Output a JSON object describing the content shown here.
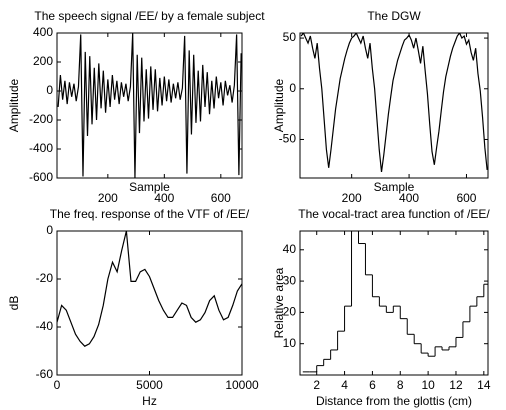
{
  "chart_data": [
    {
      "type": "line",
      "title": "The speech signal /EE/ by a female subject",
      "x_label": "Sample",
      "y_label": "Amplitude",
      "color": "#000000",
      "x": [
        24,
        32,
        40,
        48,
        56,
        64,
        72,
        80,
        88,
        96,
        104,
        112,
        120,
        128,
        136,
        144,
        152,
        160,
        168,
        176,
        184,
        192,
        200,
        208,
        216,
        224,
        232,
        240,
        248,
        256,
        264,
        272,
        280,
        288,
        296,
        304,
        312,
        320,
        328,
        336,
        344,
        352,
        360,
        368,
        376,
        384,
        392,
        400,
        408,
        416,
        424,
        432,
        440,
        448,
        456,
        464,
        472,
        480,
        488,
        496,
        504,
        512,
        520,
        528,
        536,
        544,
        552,
        560,
        568,
        576,
        584,
        592,
        600,
        608,
        616,
        624,
        632,
        640,
        648,
        656,
        664,
        672
      ],
      "values": [
        -110,
        110,
        -60,
        70,
        -90,
        60,
        -40,
        50,
        -70,
        30,
        390,
        -590,
        270,
        -310,
        240,
        -230,
        160,
        -200,
        190,
        -120,
        140,
        -150,
        80,
        -110,
        110,
        -60,
        70,
        -90,
        60,
        -40,
        50,
        -70,
        30,
        400,
        -600,
        250,
        -290,
        230,
        -210,
        150,
        -190,
        170,
        -130,
        150,
        -140,
        90,
        -100,
        100,
        -70,
        80,
        -80,
        50,
        -50,
        60,
        -60,
        20,
        380,
        -570,
        280,
        -300,
        250,
        -220,
        140,
        -210,
        180,
        -110,
        130,
        -160,
        70,
        -120,
        100,
        -50,
        60,
        -100,
        70,
        -30,
        40,
        -80,
        40,
        390,
        -580,
        260
      ],
      "xlim": [
        20,
        675
      ],
      "ylim": [
        -600,
        400
      ],
      "xticks": [
        200,
        400,
        600
      ],
      "yticks": [
        -600,
        -400,
        -200,
        0,
        200,
        400
      ]
    },
    {
      "type": "line",
      "title": "The DGW",
      "x_label": "Sample",
      "y_label": "Amplitude",
      "color": "#000000",
      "x": [
        24,
        32,
        40,
        48,
        56,
        64,
        72,
        80,
        88,
        96,
        104,
        112,
        120,
        128,
        136,
        144,
        152,
        160,
        168,
        176,
        184,
        192,
        200,
        208,
        216,
        224,
        232,
        240,
        248,
        256,
        264,
        272,
        280,
        288,
        296,
        304,
        312,
        320,
        328,
        336,
        344,
        352,
        360,
        368,
        376,
        384,
        392,
        400,
        408,
        416,
        424,
        432,
        440,
        448,
        456,
        464,
        472,
        480,
        488,
        496,
        504,
        512,
        520,
        528,
        536,
        544,
        552,
        560,
        568,
        576,
        584,
        592,
        600,
        608,
        616,
        624,
        632,
        640,
        648,
        656,
        664,
        672
      ],
      "values": [
        52,
        55,
        50,
        45,
        52,
        40,
        30,
        45,
        20,
        0,
        -30,
        -60,
        -78,
        -60,
        -40,
        -20,
        -5,
        10,
        20,
        30,
        38,
        45,
        50,
        52,
        55,
        50,
        45,
        52,
        40,
        30,
        45,
        20,
        0,
        -30,
        -60,
        -82,
        -65,
        -45,
        -25,
        -8,
        8,
        18,
        28,
        35,
        42,
        48,
        50,
        53,
        48,
        40,
        50,
        38,
        25,
        42,
        18,
        -5,
        -35,
        -62,
        -75,
        -58,
        -42,
        -22,
        -3,
        12,
        22,
        32,
        40,
        46,
        52,
        55,
        50,
        52,
        44,
        48,
        36,
        28,
        40,
        15,
        -2,
        -28,
        -58,
        -80
      ],
      "xlim": [
        20,
        675
      ],
      "ylim": [
        -88,
        55
      ],
      "xticks": [
        200,
        400,
        600
      ],
      "yticks": [
        -50,
        0,
        50
      ]
    },
    {
      "type": "line",
      "title": "The freq. response of the VTF of /EE/",
      "x_label": "Hz",
      "y_label": "dB",
      "color": "#000000",
      "x": [
        0,
        250,
        500,
        750,
        1000,
        1250,
        1500,
        1750,
        2000,
        2250,
        2500,
        2750,
        3000,
        3250,
        3500,
        3750,
        4000,
        4250,
        4500,
        4750,
        5000,
        5250,
        5500,
        5750,
        6000,
        6250,
        6500,
        6750,
        7000,
        7250,
        7500,
        7750,
        8000,
        8250,
        8500,
        8750,
        9000,
        9250,
        9500,
        9750,
        10000
      ],
      "values": [
        -38,
        -31,
        -33,
        -38,
        -43,
        -46,
        -48,
        -47,
        -44,
        -39,
        -31,
        -20,
        -13,
        -17,
        -8,
        0,
        -21,
        -21,
        -17,
        -16,
        -19,
        -24,
        -29,
        -33,
        -36,
        -36,
        -33,
        -30,
        -31,
        -36,
        -38,
        -37,
        -34,
        -29,
        -27,
        -33,
        -37,
        -36,
        -31,
        -25,
        -22
      ],
      "xlim": [
        0,
        10000
      ],
      "ylim": [
        -60,
        0
      ],
      "xticks": [
        0,
        5000,
        10000
      ],
      "yticks": [
        -60,
        -40,
        -20,
        0
      ]
    },
    {
      "type": "step",
      "title": "The vocal-tract area function of /EE/",
      "x_label": "Distance from the glottis (cm)",
      "y_label": "Relative area",
      "color": "#000000",
      "x": [
        1,
        1.5,
        2,
        2.5,
        3,
        3.5,
        4,
        4.5,
        5,
        5.5,
        6,
        6.5,
        7,
        7.5,
        8,
        8.5,
        9,
        9.5,
        10,
        10.5,
        11,
        11.5,
        12,
        12.5,
        13,
        13.5,
        14
      ],
      "values": [
        1,
        1,
        3,
        5,
        8,
        14,
        22,
        47,
        42,
        32,
        25,
        22,
        20,
        22,
        18,
        13,
        10,
        7,
        6,
        9,
        8,
        9,
        12,
        17,
        22,
        25,
        29
      ],
      "xlim": [
        0.8,
        14.3
      ],
      "ylim": [
        0,
        46
      ],
      "xticks": [
        2,
        4,
        6,
        8,
        10,
        12,
        14
      ],
      "yticks": [
        10,
        20,
        30,
        40
      ]
    }
  ]
}
